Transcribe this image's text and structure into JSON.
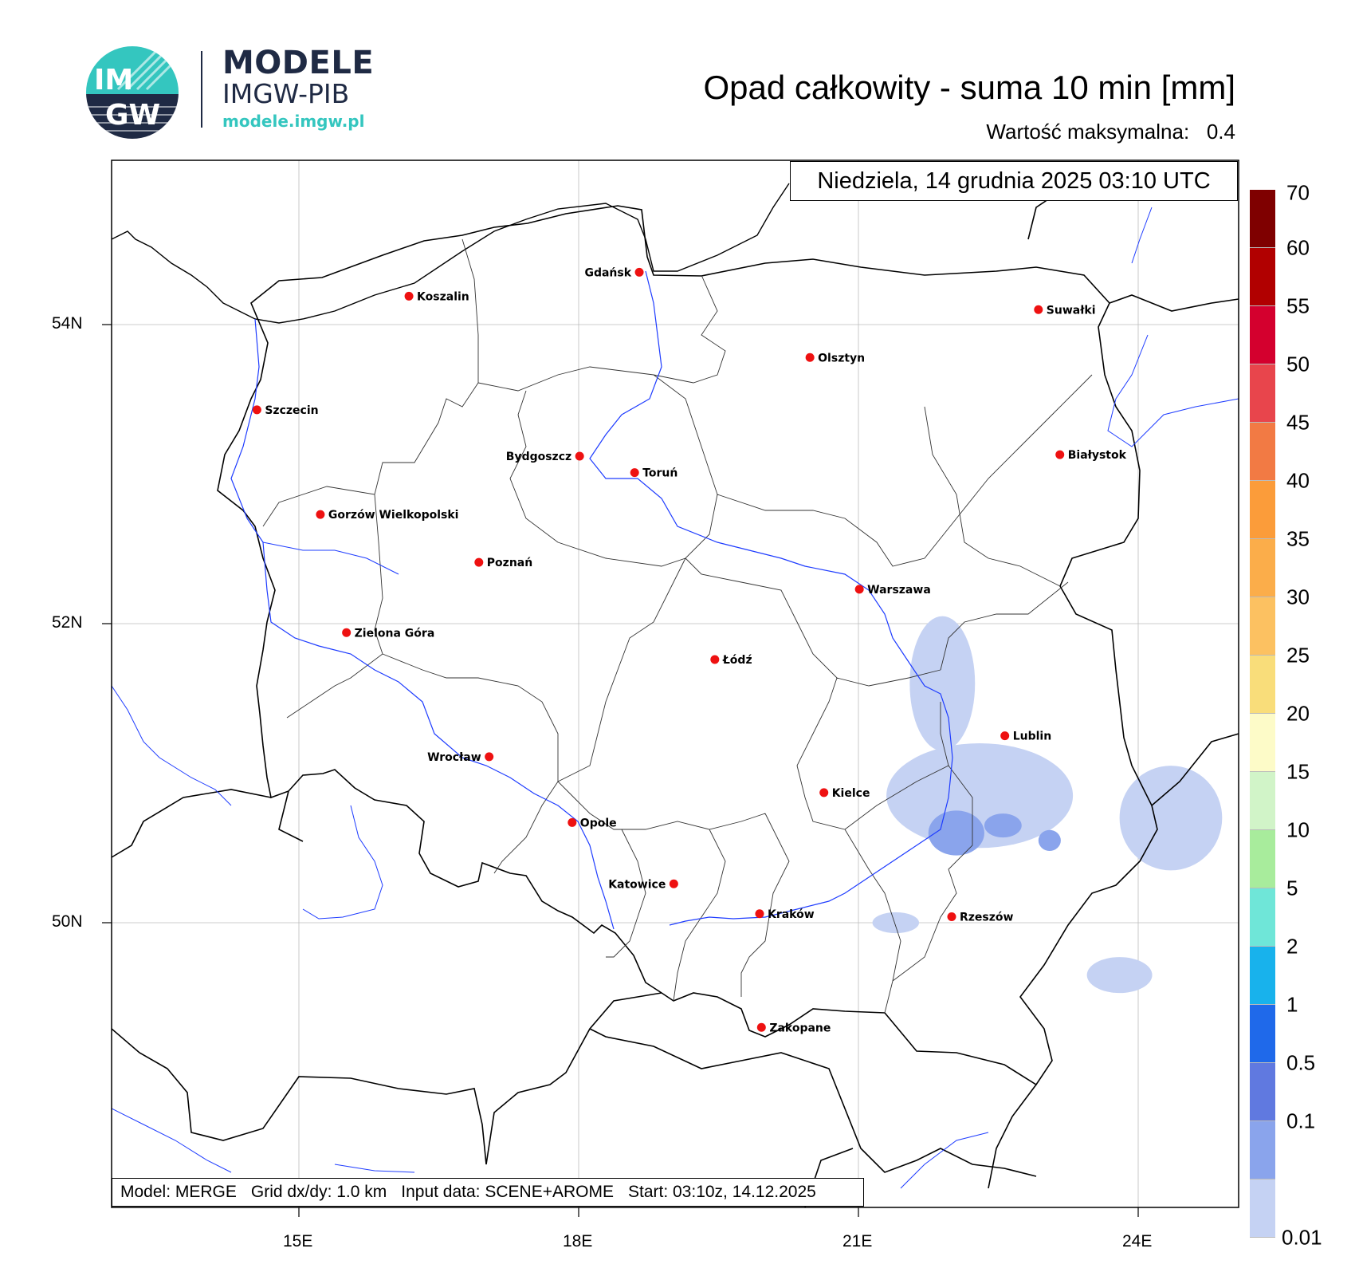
{
  "brand": {
    "logo_mark_top": "IM",
    "logo_mark_bottom": "GW",
    "title": "MODELE",
    "subtitle": "IMGW-PIB",
    "url": "modele.imgw.pl",
    "accent_color": "#34c6bf",
    "navy_color": "#1f2a44"
  },
  "header": {
    "title": "Opad całkowity - suma 10 min [mm]",
    "max_label": "Wartość maksymalna:",
    "max_value": "0.4"
  },
  "date_label": "Niedziela, 14 grudnia 2025 03:10 UTC",
  "footer": {
    "model": "Model: MERGE",
    "grid": "Grid dx/dy: 1.0 km",
    "input": "Input data: SCENE+AROME",
    "start": "Start: 03:10z, 14.12.2025"
  },
  "axes": {
    "lat_ticks": [
      "54N",
      "52N",
      "50N"
    ],
    "lon_ticks": [
      "15E",
      "18E",
      "21E",
      "24E"
    ]
  },
  "legend": {
    "unit": "mm",
    "levels": [
      "70",
      "60",
      "55",
      "50",
      "45",
      "40",
      "35",
      "30",
      "25",
      "20",
      "15",
      "10",
      "5",
      "2",
      "1",
      "0.5",
      "0.1",
      "0.01"
    ],
    "colors": [
      "#7f0000",
      "#b10000",
      "#d4002e",
      "#e8454c",
      "#f27a44",
      "#fb9c3a",
      "#fbad4a",
      "#fcc161",
      "#f9dd7a",
      "#fdfbc8",
      "#d1f4c8",
      "#a8ec9c",
      "#6fe6d8",
      "#18b2ec",
      "#1f69ea",
      "#6079e0",
      "#8aa4ec",
      "#c5d2f3"
    ]
  },
  "cities": [
    {
      "name": "Gdańsk",
      "lon": 18.65,
      "lat": 54.35
    },
    {
      "name": "Koszalin",
      "lon": 16.18,
      "lat": 54.19
    },
    {
      "name": "Suwałki",
      "lon": 22.93,
      "lat": 54.1
    },
    {
      "name": "Olsztyn",
      "lon": 20.48,
      "lat": 53.78
    },
    {
      "name": "Szczecin",
      "lon": 14.55,
      "lat": 53.43
    },
    {
      "name": "Białystok",
      "lon": 23.16,
      "lat": 53.13
    },
    {
      "name": "Bydgoszcz",
      "lon": 18.01,
      "lat": 53.12
    },
    {
      "name": "Toruń",
      "lon": 18.6,
      "lat": 53.01
    },
    {
      "name": "Gorzów Wielkopolski",
      "lon": 15.23,
      "lat": 52.73
    },
    {
      "name": "Poznań",
      "lon": 16.93,
      "lat": 52.41
    },
    {
      "name": "Warszawa",
      "lon": 21.01,
      "lat": 52.23
    },
    {
      "name": "Zielona Góra",
      "lon": 15.51,
      "lat": 51.94
    },
    {
      "name": "Łódź",
      "lon": 19.46,
      "lat": 51.76
    },
    {
      "name": "Lublin",
      "lon": 22.57,
      "lat": 51.25
    },
    {
      "name": "Wrocław",
      "lon": 17.04,
      "lat": 51.11
    },
    {
      "name": "Kielce",
      "lon": 20.63,
      "lat": 50.87
    },
    {
      "name": "Opole",
      "lon": 17.93,
      "lat": 50.67
    },
    {
      "name": "Katowice",
      "lon": 19.02,
      "lat": 50.26
    },
    {
      "name": "Rzeszów",
      "lon": 22.0,
      "lat": 50.04
    },
    {
      "name": "Kraków",
      "lon": 19.94,
      "lat": 50.06
    },
    {
      "name": "Zakopane",
      "lon": 19.96,
      "lat": 49.3
    }
  ],
  "precip_areas": [
    {
      "level": "0.01",
      "lon": 21.9,
      "lat": 51.6,
      "rx": 0.35,
      "ry": 0.45
    },
    {
      "level": "0.01",
      "lon": 22.3,
      "lat": 50.85,
      "rx": 1.0,
      "ry": 0.35
    },
    {
      "level": "0.01",
      "lon": 24.35,
      "lat": 50.7,
      "rx": 0.55,
      "ry": 0.35
    },
    {
      "level": "0.01",
      "lon": 23.8,
      "lat": 49.65,
      "rx": 0.35,
      "ry": 0.12
    },
    {
      "level": "0.01",
      "lon": 21.4,
      "lat": 50.0,
      "rx": 0.25,
      "ry": 0.07
    },
    {
      "level": "0.1",
      "lon": 22.05,
      "lat": 50.6,
      "rx": 0.3,
      "ry": 0.15
    },
    {
      "level": "0.1",
      "lon": 22.55,
      "lat": 50.65,
      "rx": 0.2,
      "ry": 0.08
    },
    {
      "level": "0.1",
      "lon": 23.05,
      "lat": 50.55,
      "rx": 0.12,
      "ry": 0.07
    }
  ]
}
